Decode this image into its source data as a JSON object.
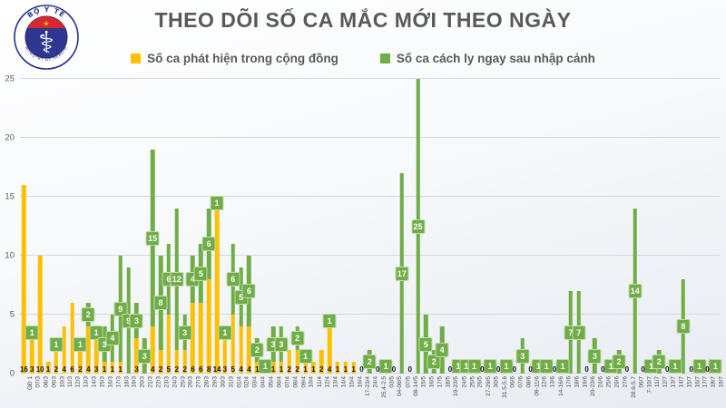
{
  "title": "THEO DÕI SỐ CA MẮC MỚI THEO NGÀY",
  "logo": {
    "top_text": "BỘ Y TẾ",
    "bottom_text": "MINISTRY OF HEALTH"
  },
  "legend": [
    {
      "label": "Số ca phát hiện trong cộng đồng",
      "color": "#FFC000"
    },
    {
      "label": "Số ca cách ly ngay sau nhập cảnh",
      "color": "#70AD47"
    }
  ],
  "colors": {
    "community": "#FFC000",
    "imported": "#70AD47",
    "title_text": "#595959",
    "badge_text": "#ffffff"
  },
  "chart_data": {
    "type": "bar",
    "stacked": true,
    "title": "THEO DÕI SỐ CA MẮC MỚI THEO NGÀY",
    "xlabel": "",
    "ylabel": "",
    "ylim": [
      0,
      25
    ],
    "yticks": [
      0,
      5,
      10,
      15,
      20,
      25
    ],
    "grid": true,
    "legend_position": "top",
    "categories": [
      "GĐ 1",
      "07/3",
      "08/3",
      "09/3",
      "10/3",
      "11/3",
      "12/3",
      "13/3",
      "14/3",
      "15/3",
      "16/3",
      "17/3",
      "18/3",
      "19/3",
      "20/3",
      "21/3",
      "22/3",
      "23/3",
      "24/3",
      "25/3",
      "26/3",
      "27/3",
      "28/3",
      "29/3",
      "30/3",
      "31/3",
      "01/4",
      "02/4",
      "03/4",
      "04/4",
      "05/4",
      "06/4",
      "07/4",
      "08/4",
      "09/4",
      "10/4",
      "11/4",
      "12/4",
      "13/4",
      "14/4",
      "15/4",
      "16/4",
      "17-23/4",
      "24/4",
      "25.4-2.5",
      "03/5",
      "04-06/5",
      "07/5",
      "08-14/5",
      "15/5",
      "16/5",
      "17/5",
      "18/5",
      "19-23/5",
      "24/5",
      "25/5",
      "26/5",
      "27-29/5",
      "30/5",
      "31.5-5.6",
      "06/6",
      "07/6",
      "08/6",
      "09-11/6",
      "12/6",
      "13/6",
      "14-16/6",
      "17/6",
      "18/6",
      "19/6",
      "20-23/6",
      "24/6",
      "25/6",
      "26/6",
      "27/6",
      "28.6-5.7",
      "06/7",
      "7-10/7",
      "11/7",
      "12/7",
      "13/7",
      "14/7",
      "15/7",
      "16/7",
      "17/7",
      "18/7",
      "19/7"
    ],
    "series": [
      {
        "name": "Số ca phát hiện trong cộng đồng",
        "color": "#FFC000",
        "values": [
          16,
          3,
          10,
          1,
          2,
          4,
          6,
          2,
          4,
          3,
          1,
          1,
          1,
          0,
          3,
          0,
          4,
          2,
          5,
          2,
          2,
          6,
          6,
          8,
          14,
          3,
          5,
          4,
          4,
          1,
          0,
          1,
          1,
          2,
          2,
          1,
          1,
          2,
          4,
          1,
          1,
          1,
          0,
          0,
          0,
          0,
          0,
          0,
          0,
          0,
          0,
          0,
          0,
          0,
          0,
          0,
          0,
          0,
          0,
          0,
          0,
          0,
          0,
          0,
          0,
          0,
          0,
          0,
          0,
          0,
          0,
          0,
          0,
          0,
          0,
          0,
          0,
          0,
          0,
          0,
          0,
          0,
          0,
          0,
          0,
          0,
          0
        ]
      },
      {
        "name": "Số ca cách ly ngay sau nhập cảnh",
        "color": "#70AD47",
        "values": [
          0,
          1,
          0,
          0,
          1,
          0,
          0,
          1,
          2,
          1,
          3,
          4,
          9,
          9,
          3,
          3,
          15,
          8,
          6,
          12,
          3,
          4,
          5,
          6,
          1,
          1,
          6,
          5,
          6,
          2,
          1,
          3,
          3,
          0,
          2,
          1,
          0,
          0,
          1,
          0,
          0,
          0,
          0,
          2,
          0,
          1,
          0,
          17,
          0,
          25,
          5,
          2,
          4,
          0,
          1,
          1,
          1,
          0,
          1,
          0,
          1,
          0,
          3,
          0,
          1,
          1,
          0,
          1,
          7,
          7,
          0,
          3,
          0,
          1,
          2,
          0,
          14,
          0,
          1,
          2,
          0,
          1,
          8,
          0,
          1,
          0,
          1
        ]
      }
    ]
  }
}
